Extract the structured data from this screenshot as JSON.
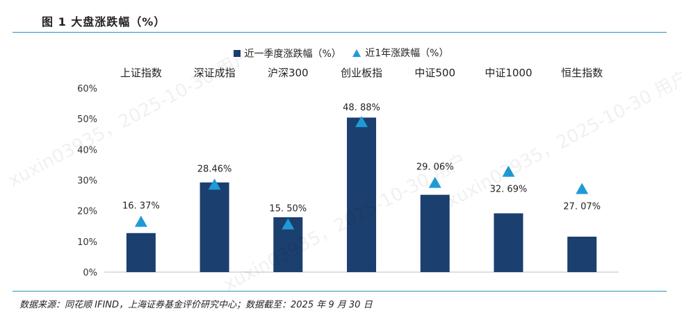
{
  "figure": {
    "title": "图 1 大盘涨跌幅（%）",
    "source": "数据来源：同花顺 IFIND，上海证券基金评价研究中心；数据截至：2025 年 9 月 30 日",
    "watermark": "xuxin03935，2025-10-30 用户"
  },
  "legend": {
    "quarter_label": "近一季度涨跌幅（%）",
    "year_label": "近1年涨跌幅（%）"
  },
  "colors": {
    "bar": "#1b3f6e",
    "marker": "#1f9ad6",
    "rule": "#2a8fc6"
  },
  "chart_data": {
    "type": "bar",
    "categories": [
      "上证指数",
      "深证成指",
      "沪深300",
      "创业板指",
      "中证500",
      "中证1000",
      "恒生指数"
    ],
    "series": [
      {
        "name": "近一季度涨跌幅（%）",
        "kind": "bar",
        "values": [
          12.73,
          29.25,
          17.9,
          50.4,
          25.22,
          19.17,
          11.56
        ]
      },
      {
        "name": "近1年涨跌幅（%）",
        "kind": "marker",
        "values": [
          16.37,
          28.46,
          15.5,
          48.88,
          29.06,
          32.69,
          27.07
        ]
      }
    ],
    "data_labels": [
      "16. 37%",
      "28.46%",
      "15. 50%",
      "48. 88%",
      "29. 06%",
      "32. 69%",
      "27. 07%"
    ],
    "y_ticks": [
      "0%",
      "10%",
      "20%",
      "30%",
      "40%",
      "50%",
      "60%"
    ],
    "ylim": [
      0,
      60
    ],
    "grid": false,
    "legend_position": "top"
  }
}
